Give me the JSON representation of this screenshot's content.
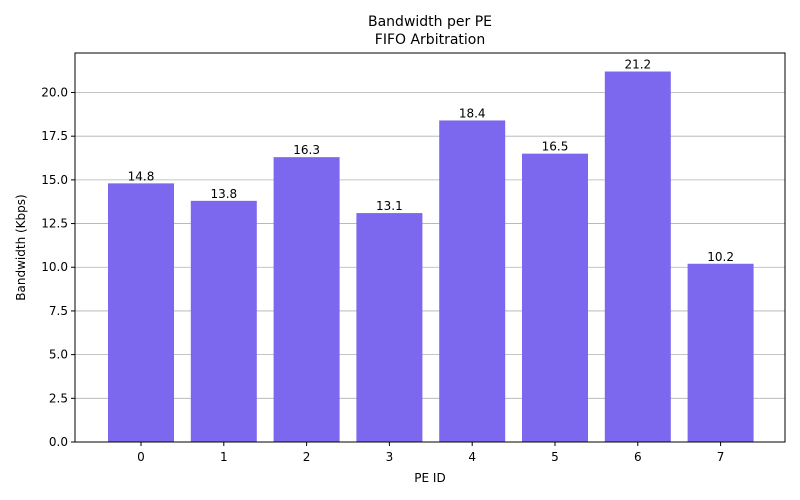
{
  "chart_data": {
    "type": "bar",
    "title": "Bandwidth per PE",
    "subtitle": "FIFO Arbitration",
    "xlabel": "PE ID",
    "ylabel": "Bandwidth (Kbps)",
    "categories": [
      "0",
      "1",
      "2",
      "3",
      "4",
      "5",
      "6",
      "7"
    ],
    "values": [
      14.8,
      13.8,
      16.3,
      13.1,
      18.4,
      16.5,
      21.2,
      10.2
    ],
    "data_labels": [
      "14.8",
      "13.8",
      "16.3",
      "13.1",
      "18.4",
      "16.5",
      "21.2",
      "10.2"
    ],
    "ylim": [
      0,
      22.26
    ],
    "y_ticks": [
      0,
      2.5,
      5,
      7.5,
      10,
      12.5,
      15,
      17.5,
      20
    ],
    "y_tick_labels": [
      "0.0",
      "2.5",
      "5.0",
      "7.5",
      "10.0",
      "12.5",
      "15.0",
      "17.5",
      "20.0"
    ],
    "grid": "y-axis",
    "bar_color": "#7b68ee",
    "grid_color": "#b0b0b0"
  }
}
